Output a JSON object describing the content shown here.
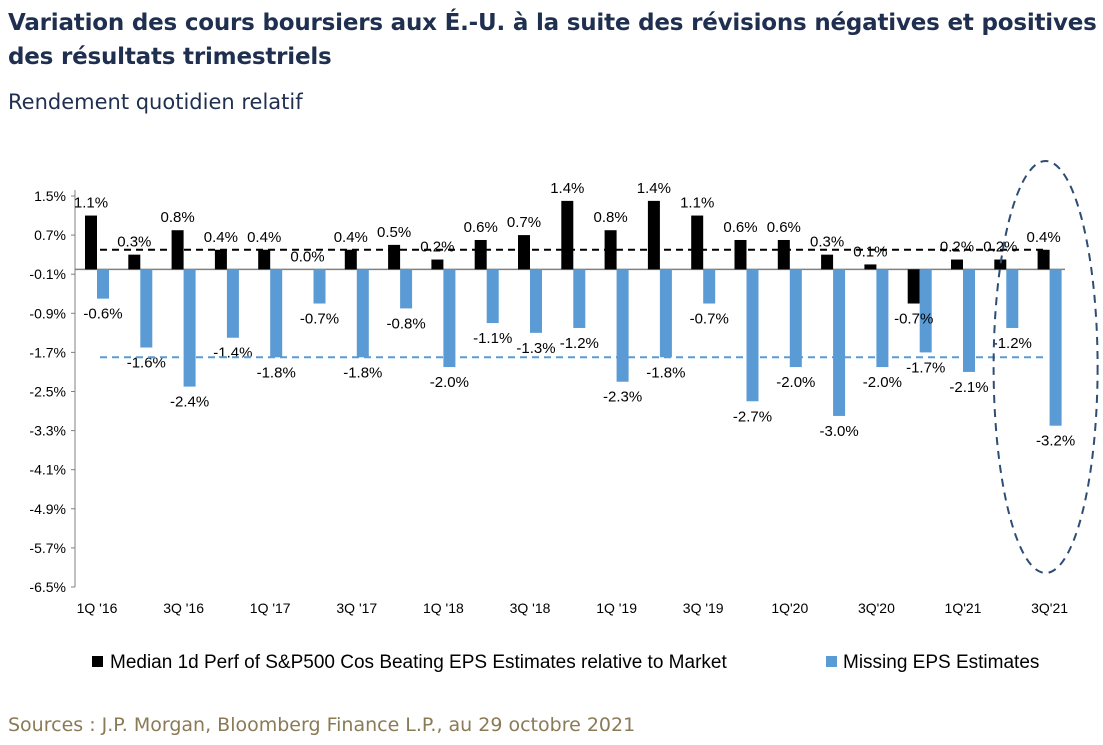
{
  "header": {
    "title": "Variation des cours boursiers aux É.-U. à la suite des révisions négatives et positives des résultats trimestriels",
    "subtitle": "Rendement quotidien relatif"
  },
  "footer": {
    "source": "Sources : J.P. Morgan, Bloomberg Finance L.P., au 29 octobre 2021"
  },
  "chart_data": {
    "type": "bar",
    "y_ticks": [
      "1.5%",
      "0.7%",
      "-0.1%",
      "-0.9%",
      "-1.7%",
      "-2.5%",
      "-3.3%",
      "-4.1%",
      "-4.9%",
      "-5.7%",
      "-6.5%"
    ],
    "y_tick_values": [
      1.5,
      0.7,
      -0.1,
      -0.9,
      -1.7,
      -2.5,
      -3.3,
      -4.1,
      -4.9,
      -5.7,
      -6.5
    ],
    "ylim": [
      -6.5,
      1.5
    ],
    "x_tick_labels": [
      "1Q '16",
      "3Q '16",
      "1Q '17",
      "3Q '17",
      "1Q '18",
      "3Q '18",
      "1Q '19",
      "3Q '19",
      "1Q'20",
      "3Q'20",
      "1Q'21",
      "3Q'21"
    ],
    "quarters": 23,
    "series": [
      {
        "name": "Median 1d Perf of S&P500 Cos Beating EPS Estimates relative to Market",
        "color": "#000000",
        "values": [
          1.1,
          0.3,
          0.8,
          0.4,
          0.4,
          0.0,
          0.4,
          0.5,
          0.2,
          0.6,
          0.7,
          1.4,
          0.8,
          1.4,
          1.1,
          0.6,
          0.6,
          0.3,
          0.1,
          -0.7,
          0.2,
          0.2,
          0.4
        ],
        "labels": [
          "1.1%",
          "0.3%",
          "0.8%",
          "0.4%",
          "0.4%",
          "0.0%",
          "0.4%",
          "0.5%",
          "0.2%",
          "0.6%",
          "0.7%",
          "1.4%",
          "0.8%",
          "1.4%",
          "1.1%",
          "0.6%",
          "0.6%",
          "0.3%",
          "0.1%",
          "-0.7%",
          "0.2%",
          "0.2%",
          "0.4%"
        ]
      },
      {
        "name": "Missing EPS Estimates",
        "color": "#5b9bd5",
        "values": [
          -0.6,
          -1.6,
          -2.4,
          -1.4,
          -1.8,
          -0.7,
          -1.8,
          -0.8,
          -2.0,
          -1.1,
          -1.3,
          -1.2,
          -2.3,
          -1.8,
          -0.7,
          -2.7,
          -2.0,
          -3.0,
          -2.0,
          -1.7,
          -2.1,
          -1.2,
          -3.2
        ],
        "labels": [
          "-0.6%",
          "-1.6%",
          "-2.4%",
          "-1.4%",
          "-1.8%",
          "-0.7%",
          "-1.8%",
          "-0.8%",
          "-2.0%",
          "-1.1%",
          "-1.3%",
          "-1.2%",
          "-2.3%",
          "-1.8%",
          "-0.7%",
          "-2.7%",
          "-2.0%",
          "-3.0%",
          "-2.0%",
          "-1.7%",
          "-2.1%",
          "-1.2%",
          "-3.2%"
        ]
      }
    ],
    "average_lines": [
      {
        "series": 0,
        "value": 0.4,
        "color": "#000000",
        "style": "dashed"
      },
      {
        "series": 1,
        "value": -1.8,
        "color": "#5b9bd5",
        "style": "dashed"
      }
    ],
    "annotations": [
      {
        "type": "dashed-ellipse",
        "around": "3Q'21",
        "color": "#2e4d74"
      }
    ],
    "legend": {
      "position": "bottom",
      "items": [
        "Median 1d Perf of S&P500 Cos Beating EPS Estimates relative to Market",
        "Missing EPS Estimates"
      ]
    },
    "grid": false
  }
}
